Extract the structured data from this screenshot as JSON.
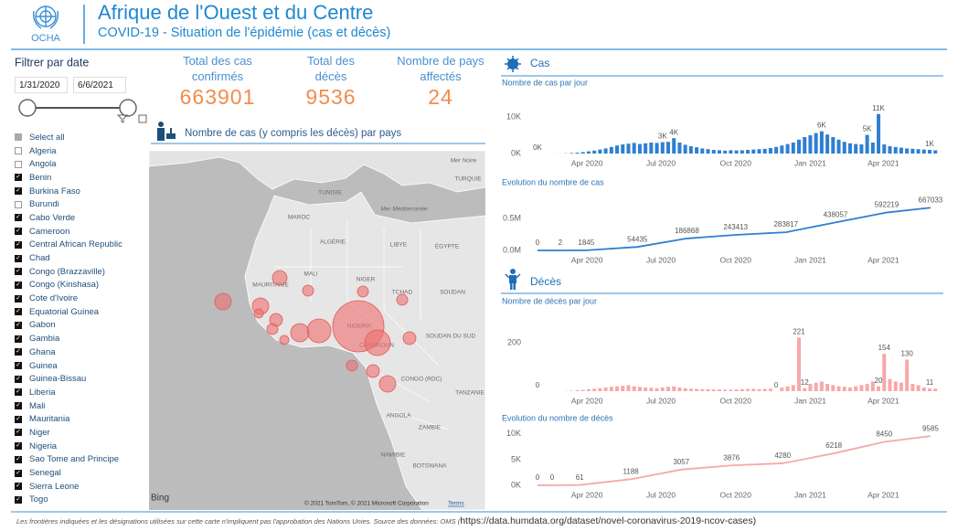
{
  "header": {
    "org": "OCHA",
    "title": "Afrique de l'Ouest et du Centre",
    "subtitle": "COVID-19 - Situation de l'épidémie (cas et décès)"
  },
  "filter": {
    "title": "Filtrer par date",
    "start": "1/31/2020",
    "end": "6/6/2021",
    "countries": [
      {
        "name": "Select all",
        "state": "partial"
      },
      {
        "name": "Algeria",
        "state": "unchecked"
      },
      {
        "name": "Angola",
        "state": "unchecked"
      },
      {
        "name": "Benin",
        "state": "checked"
      },
      {
        "name": "Burkina Faso",
        "state": "checked"
      },
      {
        "name": "Burundi",
        "state": "unchecked"
      },
      {
        "name": "Cabo Verde",
        "state": "checked"
      },
      {
        "name": "Cameroon",
        "state": "checked"
      },
      {
        "name": "Central African Republic",
        "state": "checked"
      },
      {
        "name": "Chad",
        "state": "checked"
      },
      {
        "name": "Congo (Brazzaville)",
        "state": "checked"
      },
      {
        "name": "Congo (Kinshasa)",
        "state": "checked"
      },
      {
        "name": "Cote d'Ivoire",
        "state": "checked"
      },
      {
        "name": "Equatorial Guinea",
        "state": "checked"
      },
      {
        "name": "Gabon",
        "state": "checked"
      },
      {
        "name": "Gambia",
        "state": "checked"
      },
      {
        "name": "Ghana",
        "state": "checked"
      },
      {
        "name": "Guinea",
        "state": "checked"
      },
      {
        "name": "Guinea-Bissau",
        "state": "checked"
      },
      {
        "name": "Liberia",
        "state": "checked"
      },
      {
        "name": "Mali",
        "state": "checked"
      },
      {
        "name": "Mauritania",
        "state": "checked"
      },
      {
        "name": "Niger",
        "state": "checked"
      },
      {
        "name": "Nigeria",
        "state": "checked"
      },
      {
        "name": "Sao Tome and Principe",
        "state": "checked"
      },
      {
        "name": "Senegal",
        "state": "checked"
      },
      {
        "name": "Sierra Leone",
        "state": "checked"
      },
      {
        "name": "Togo",
        "state": "checked"
      }
    ]
  },
  "kpis": [
    {
      "label": "Total des cas confirmés",
      "value": 663901
    },
    {
      "label": "Total des décès",
      "value": 9536
    },
    {
      "label": "Nombre de pays affectés",
      "value": 24
    }
  ],
  "sections": {
    "map": "Nombre de cas (y compris les décès) par pays",
    "cases": "Cas",
    "deaths": "Décès"
  },
  "map": {
    "labels": [
      "Mer Noire",
      "TURQUIE",
      "TUNISIE",
      "Mer Méditerranée",
      "MAROC",
      "ALGÉRIE",
      "LIBYE",
      "ÉGYPTE",
      "MAURITANIE",
      "MALI",
      "NIGER",
      "TCHAD",
      "SOUDAN",
      "NIGERIA",
      "SOUDAN DU SUD",
      "CAMEROUN",
      "CONGO (RDC)",
      "TANZANIE",
      "ANGOLA",
      "ZAMBIE",
      "NAMIBIE",
      "BOTSWANA"
    ],
    "bubble_values": [
      167000,
      41700,
      36000,
      21300,
      17250,
      17250,
      13600,
      17250,
      10400,
      10400,
      7700,
      7700,
      7700,
      10400,
      7700,
      5300,
      7700,
      5300
    ],
    "brand": "Bing",
    "attribution": "© 2021 TomTom, © 2021 Microsoft Corporation",
    "terms": "Terms"
  },
  "chart_data": [
    {
      "type": "bar",
      "title": "Nombre de cas par jour",
      "color": "#2f7fd0",
      "xlim": [
        0,
        492
      ],
      "ylim": [
        0,
        12000
      ],
      "yticks": [
        {
          "value": 0,
          "label": "0K"
        },
        {
          "value": 10000,
          "label": "10K"
        }
      ],
      "xticks": [
        {
          "value": 61,
          "label": "Apr 2020"
        },
        {
          "value": 152,
          "label": "Jul 2020"
        },
        {
          "value": 244,
          "label": "Oct 2020"
        },
        {
          "value": 336,
          "label": "Jan 2021"
        },
        {
          "value": 426,
          "label": "Apr 2021"
        }
      ],
      "x": [
        0,
        7,
        14,
        21,
        28,
        35,
        42,
        49,
        56,
        63,
        70,
        77,
        84,
        91,
        98,
        105,
        112,
        119,
        126,
        133,
        140,
        147,
        154,
        161,
        168,
        175,
        182,
        189,
        196,
        203,
        210,
        217,
        224,
        231,
        238,
        245,
        252,
        259,
        266,
        273,
        280,
        287,
        294,
        301,
        308,
        315,
        322,
        329,
        336,
        343,
        350,
        357,
        364,
        371,
        378,
        385,
        392,
        399,
        406,
        413,
        420,
        427,
        434,
        441,
        448,
        455,
        462,
        469,
        476,
        483,
        490
      ],
      "values": [
        0,
        0,
        2,
        8,
        20,
        60,
        150,
        250,
        400,
        600,
        800,
        1100,
        1400,
        1800,
        2200,
        2500,
        2700,
        2900,
        2600,
        2800,
        3000,
        2900,
        3100,
        3200,
        4200,
        3000,
        2400,
        2000,
        1700,
        1400,
        1200,
        1000,
        900,
        800,
        900,
        850,
        900,
        1000,
        1100,
        1200,
        1300,
        1500,
        1800,
        2200,
        2600,
        3000,
        3800,
        4500,
        5000,
        5600,
        6100,
        5200,
        4500,
        3800,
        3200,
        2800,
        2600,
        2500,
        5100,
        3000,
        10800,
        2500,
        2000,
        1800,
        1600,
        1400,
        1300,
        1200,
        1100,
        1000,
        900
      ],
      "value_labels": [
        "0K",
        null,
        null,
        null,
        null,
        null,
        null,
        null,
        null,
        null,
        null,
        null,
        null,
        null,
        null,
        null,
        null,
        null,
        null,
        null,
        null,
        null,
        "3K",
        null,
        "4K",
        null,
        null,
        null,
        null,
        null,
        null,
        null,
        null,
        null,
        null,
        null,
        null,
        null,
        null,
        null,
        null,
        null,
        null,
        null,
        null,
        null,
        null,
        null,
        null,
        null,
        "6K",
        null,
        null,
        null,
        null,
        null,
        null,
        null,
        "5K",
        null,
        "11K",
        null,
        null,
        null,
        null,
        null,
        null,
        null,
        null,
        "1K",
        null
      ]
    },
    {
      "type": "line",
      "title": "Evolution du nombre de cas",
      "color": "#2f7fd0",
      "xlim": [
        0,
        492
      ],
      "ylim": [
        0,
        750000
      ],
      "yticks": [
        {
          "value": 0,
          "label": "0.0M"
        },
        {
          "value": 500000,
          "label": "0.5M"
        }
      ],
      "xticks": [
        {
          "value": 61,
          "label": "Apr 2020"
        },
        {
          "value": 152,
          "label": "Jul 2020"
        },
        {
          "value": 244,
          "label": "Oct 2020"
        },
        {
          "value": 336,
          "label": "Jan 2021"
        },
        {
          "value": 426,
          "label": "Apr 2021"
        }
      ],
      "x": [
        0,
        28,
        60,
        123,
        184,
        244,
        306,
        367,
        430,
        484
      ],
      "values": [
        0,
        2,
        1845,
        54435,
        186868,
        243413,
        283817,
        438057,
        592219,
        667033
      ]
    },
    {
      "type": "bar",
      "title": "Nombre de décès par jour",
      "color": "#f7a8a8",
      "xlim": [
        0,
        492
      ],
      "ylim": [
        0,
        260
      ],
      "yticks": [
        200
      ],
      "xticks": [
        {
          "value": 61,
          "label": "Apr 2020"
        },
        {
          "value": 152,
          "label": "Jul 2020"
        },
        {
          "value": 244,
          "label": "Oct 2020"
        },
        {
          "value": 336,
          "label": "Jan 2021"
        },
        {
          "value": 426,
          "label": "Apr 2021"
        }
      ],
      "x": [
        0,
        7,
        14,
        21,
        28,
        35,
        42,
        49,
        56,
        63,
        70,
        77,
        84,
        91,
        98,
        105,
        112,
        119,
        126,
        133,
        140,
        147,
        154,
        161,
        168,
        175,
        182,
        189,
        196,
        203,
        210,
        217,
        224,
        231,
        238,
        245,
        252,
        259,
        266,
        273,
        280,
        287,
        294,
        301,
        308,
        315,
        322,
        329,
        336,
        343,
        350,
        357,
        364,
        371,
        378,
        385,
        392,
        399,
        406,
        413,
        420,
        427,
        434,
        441,
        448,
        455,
        462,
        469,
        476,
        483,
        490
      ],
      "values": [
        0,
        0,
        0,
        0,
        0,
        1,
        2,
        4,
        5,
        8,
        10,
        12,
        15,
        18,
        20,
        22,
        25,
        20,
        18,
        15,
        14,
        12,
        15,
        18,
        20,
        15,
        12,
        10,
        9,
        8,
        8,
        7,
        7,
        6,
        6,
        7,
        8,
        9,
        10,
        8,
        9,
        10,
        0,
        15,
        20,
        25,
        221,
        12,
        30,
        35,
        40,
        30,
        25,
        20,
        18,
        15,
        20,
        25,
        30,
        40,
        20,
        154,
        50,
        40,
        35,
        130,
        30,
        25,
        15,
        11,
        10
      ],
      "value_labels": [
        "0",
        null,
        null,
        null,
        null,
        null,
        null,
        null,
        null,
        null,
        null,
        null,
        null,
        null,
        null,
        null,
        null,
        null,
        null,
        null,
        null,
        null,
        null,
        null,
        null,
        null,
        null,
        null,
        null,
        null,
        null,
        null,
        null,
        null,
        null,
        null,
        null,
        null,
        null,
        null,
        null,
        null,
        "0",
        null,
        null,
        null,
        "221",
        "12",
        null,
        null,
        null,
        null,
        null,
        null,
        null,
        null,
        null,
        null,
        null,
        null,
        "20",
        "154",
        null,
        null,
        null,
        "130",
        null,
        null,
        null,
        "11",
        null
      ]
    },
    {
      "type": "line",
      "title": "Evolution du nombre de décès",
      "color": "#f7a8a8",
      "xlim": [
        0,
        492
      ],
      "ylim": [
        0,
        10500
      ],
      "yticks": [
        {
          "value": 0,
          "label": "0K"
        },
        {
          "value": 5000,
          "label": "5K"
        },
        {
          "value": 10000,
          "label": "10K"
        }
      ],
      "xticks": [
        {
          "value": 61,
          "label": "Apr 2020"
        },
        {
          "value": 152,
          "label": "Jul 2020"
        },
        {
          "value": 244,
          "label": "Oct 2020"
        },
        {
          "value": 336,
          "label": "Jan 2021"
        },
        {
          "value": 426,
          "label": "Apr 2021"
        }
      ],
      "x": [
        0,
        18,
        52,
        115,
        177,
        239,
        302,
        365,
        427,
        484
      ],
      "values": [
        0,
        0,
        61,
        1188,
        3057,
        3876,
        4280,
        6218,
        8450,
        9585
      ]
    }
  ],
  "footer": {
    "text": "Les frontières indiquées et les désignations utilisées sur cette carte n'impliquent pas l'approbation des Nations Unies. Source des données: OMS (",
    "link": "https://data.humdata.org/dataset/novel-coronavirus-2019-ncov-cases",
    "close": ")"
  }
}
